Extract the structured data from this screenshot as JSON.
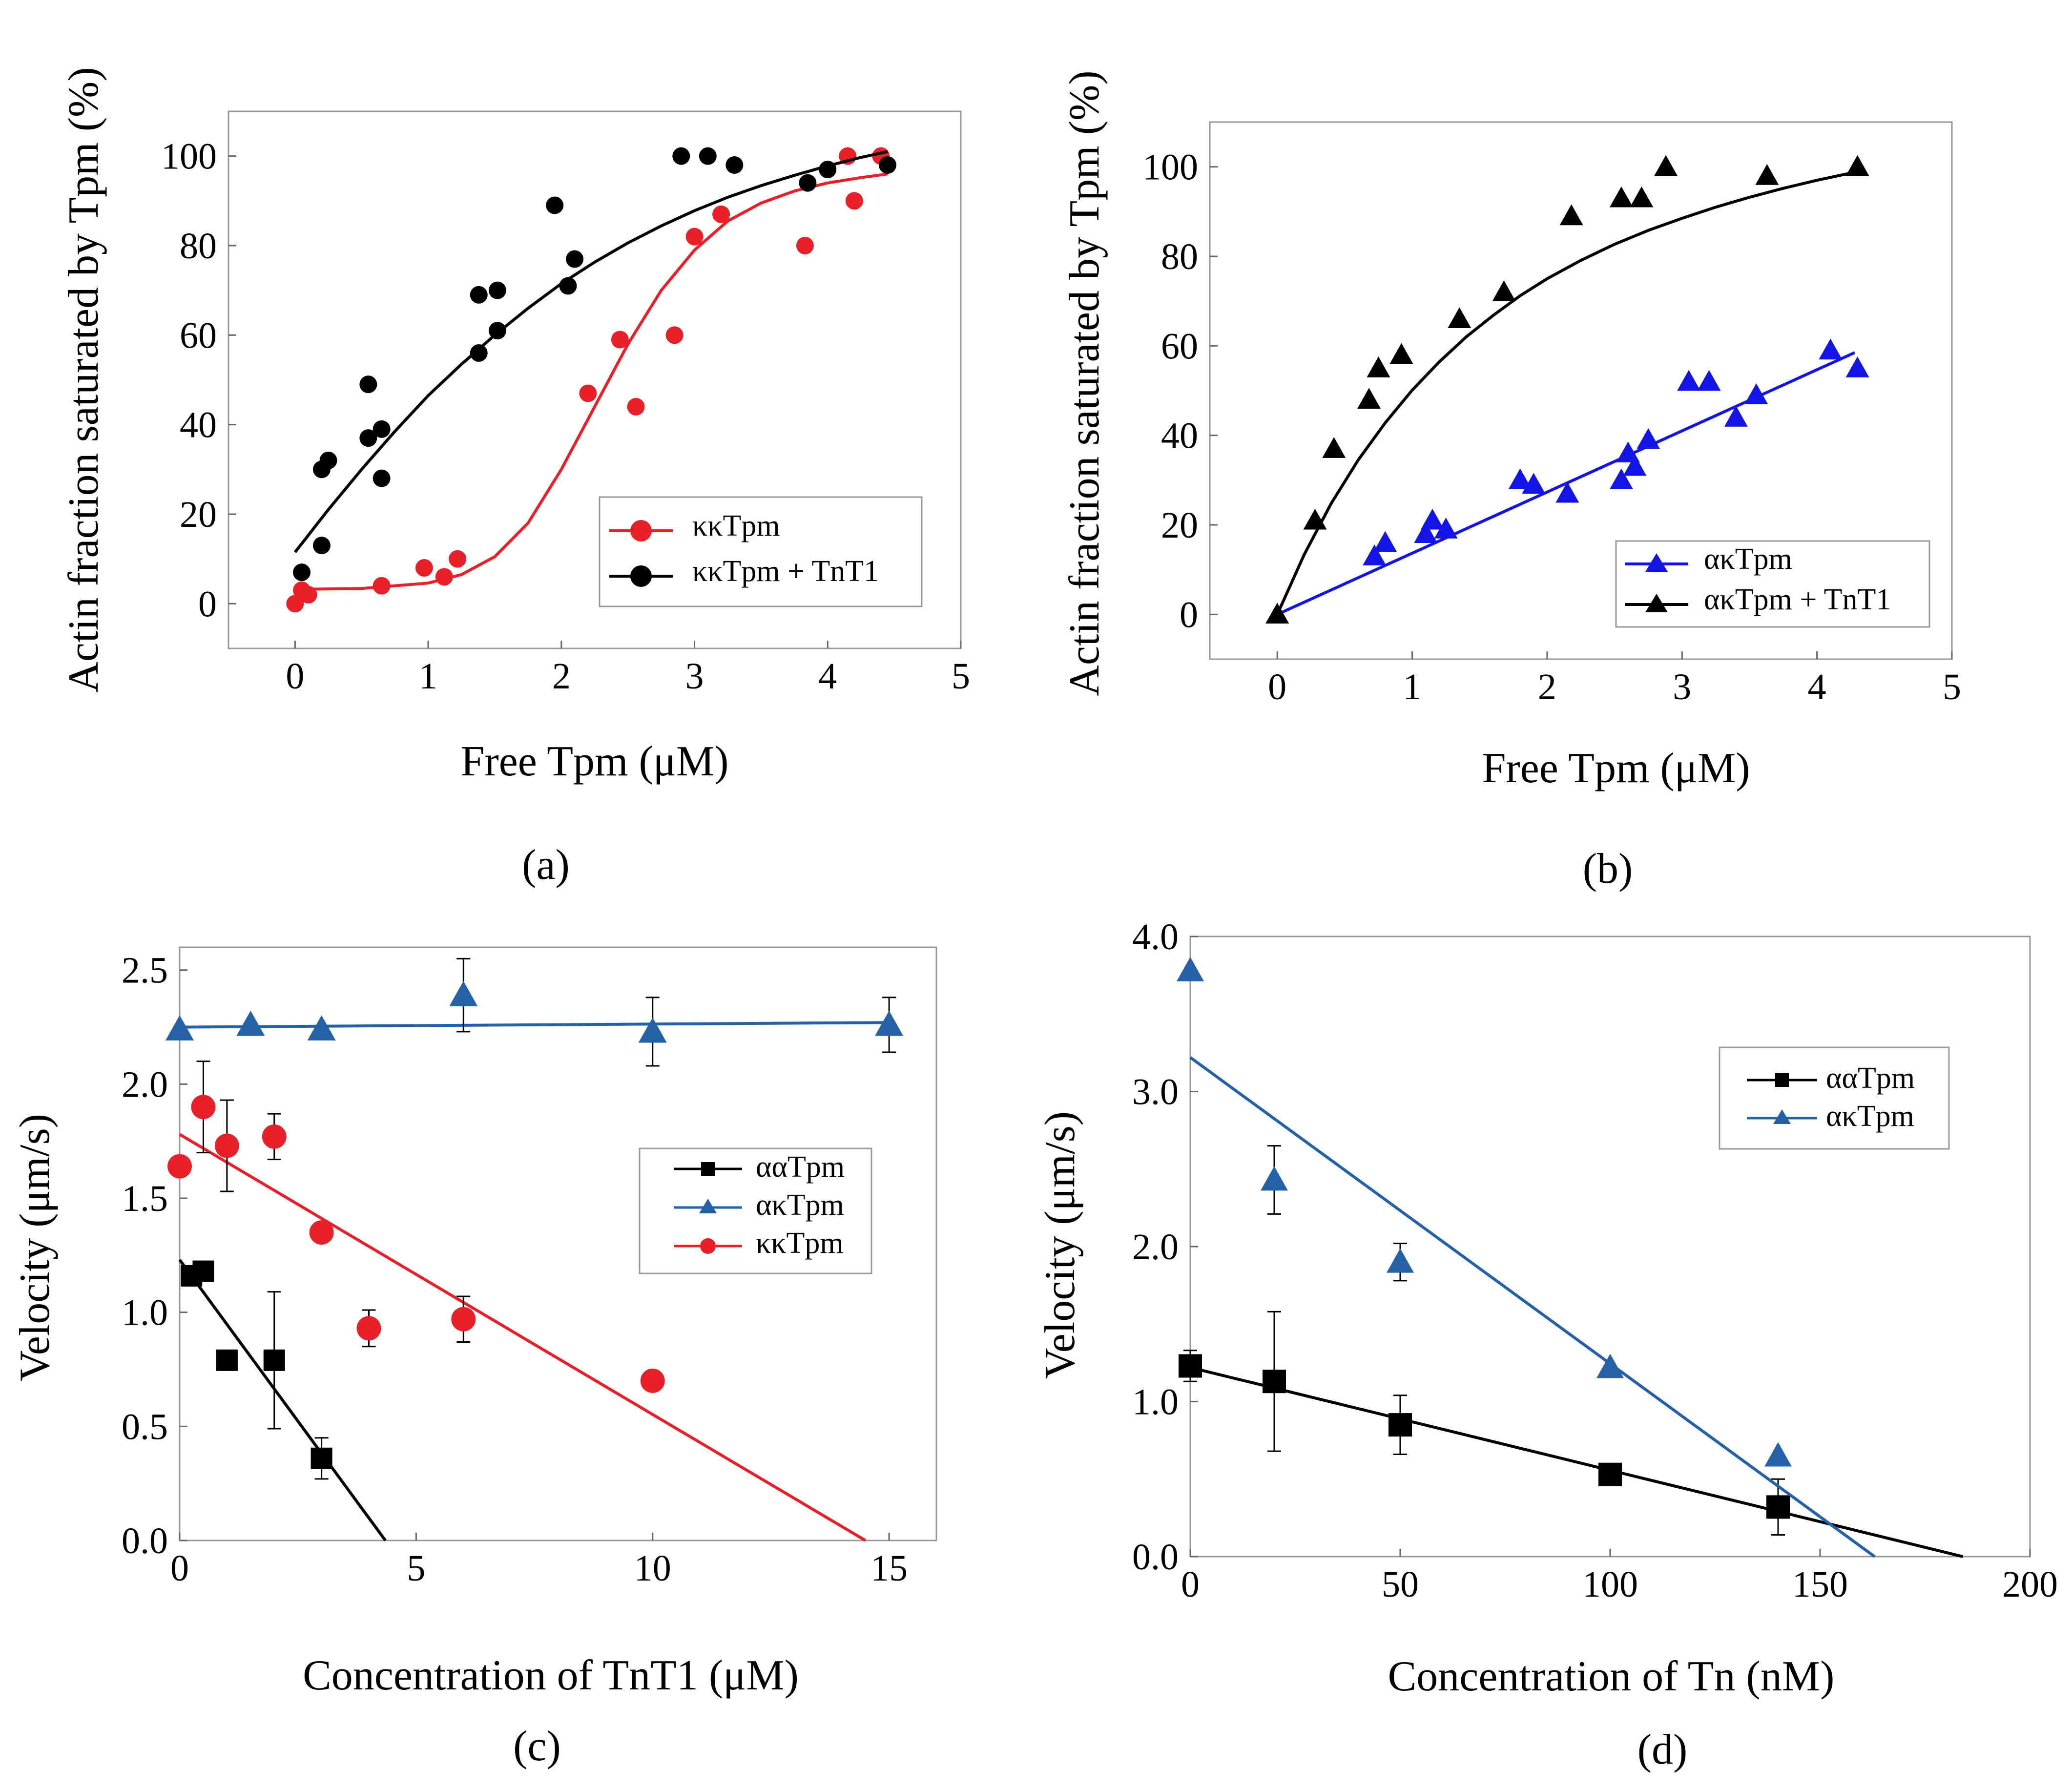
{
  "chart_data": [
    {
      "type": "scatter",
      "panel_label": "(a)",
      "xlabel": "Free Tpm (μM)",
      "ylabel": "Actin fraction saturated by Tpm (%)",
      "xlim": [
        -0.5,
        5
      ],
      "ylim": [
        -10,
        110
      ],
      "xticks": [
        "0",
        "1",
        "2",
        "3",
        "4",
        "5"
      ],
      "yticks": [
        "0",
        "20",
        "40",
        "60",
        "80",
        "100"
      ],
      "legend_position": "lower-right",
      "series": [
        {
          "name": "κκTpm",
          "color": "#e8202a",
          "marker": "circle",
          "points": [
            [
              0.0,
              0
            ],
            [
              0.05,
              3
            ],
            [
              0.1,
              2
            ],
            [
              0.65,
              4
            ],
            [
              0.97,
              8
            ],
            [
              1.12,
              6
            ],
            [
              1.22,
              10
            ],
            [
              2.2,
              47
            ],
            [
              2.44,
              59
            ],
            [
              2.56,
              44
            ],
            [
              2.85,
              60
            ],
            [
              3.0,
              82
            ],
            [
              3.2,
              87
            ],
            [
              3.83,
              80
            ],
            [
              4.15,
              100
            ],
            [
              4.2,
              90
            ],
            [
              4.4,
              100
            ]
          ],
          "fit": [
            [
              0.0,
              3.2
            ],
            [
              0.5,
              3.4
            ],
            [
              1.0,
              4.6
            ],
            [
              1.25,
              6.5
            ],
            [
              1.5,
              10.5
            ],
            [
              1.75,
              18
            ],
            [
              2.0,
              30
            ],
            [
              2.25,
              44
            ],
            [
              2.5,
              58
            ],
            [
              2.75,
              70
            ],
            [
              3.0,
              79
            ],
            [
              3.25,
              85.5
            ],
            [
              3.5,
              89.5
            ],
            [
              3.75,
              92.2
            ],
            [
              4.0,
              94
            ],
            [
              4.25,
              95.2
            ],
            [
              4.45,
              96
            ]
          ]
        },
        {
          "name": "κκTpm + TnT1",
          "color": "#000000",
          "marker": "circle",
          "points": [
            [
              0.05,
              7
            ],
            [
              0.2,
              13
            ],
            [
              0.2,
              30
            ],
            [
              0.25,
              32
            ],
            [
              0.55,
              49
            ],
            [
              0.55,
              37
            ],
            [
              0.65,
              39
            ],
            [
              0.65,
              28
            ],
            [
              1.38,
              69
            ],
            [
              1.38,
              56
            ],
            [
              1.52,
              61
            ],
            [
              1.52,
              70
            ],
            [
              1.95,
              89
            ],
            [
              2.05,
              71
            ],
            [
              2.1,
              77
            ],
            [
              2.9,
              100
            ],
            [
              3.1,
              100
            ],
            [
              3.3,
              98
            ],
            [
              3.85,
              94
            ],
            [
              4.0,
              97
            ],
            [
              4.45,
              98
            ]
          ],
          "fit": [
            [
              0.0,
              11.5
            ],
            [
              0.25,
              21
            ],
            [
              0.5,
              30
            ],
            [
              0.75,
              38.5
            ],
            [
              1.0,
              46.5
            ],
            [
              1.25,
              53.5
            ],
            [
              1.5,
              60
            ],
            [
              1.75,
              66
            ],
            [
              2.0,
              71.5
            ],
            [
              2.25,
              76.3
            ],
            [
              2.5,
              80.6
            ],
            [
              2.75,
              84.4
            ],
            [
              3.0,
              87.8
            ],
            [
              3.25,
              90.8
            ],
            [
              3.5,
              93.4
            ],
            [
              3.75,
              95.7
            ],
            [
              4.0,
              97.8
            ],
            [
              4.25,
              99.7
            ],
            [
              4.45,
              101
            ]
          ]
        }
      ]
    },
    {
      "type": "scatter",
      "panel_label": "(b)",
      "xlabel": "Free Tpm (μM)",
      "ylabel": "Actin fraction saturated by Tpm (%)",
      "xlim": [
        -0.5,
        5
      ],
      "ylim": [
        -10,
        110
      ],
      "xticks": [
        "0",
        "1",
        "2",
        "3",
        "4",
        "5"
      ],
      "yticks": [
        "0",
        "20",
        "40",
        "60",
        "80",
        "100"
      ],
      "legend_position": "lower-right",
      "series": [
        {
          "name": "ακTpm",
          "color": "#1414e6",
          "marker": "triangle",
          "points": [
            [
              0.0,
              0
            ],
            [
              0.72,
              13
            ],
            [
              0.8,
              16
            ],
            [
              1.1,
              18
            ],
            [
              1.15,
              21
            ],
            [
              1.25,
              19
            ],
            [
              1.8,
              30
            ],
            [
              1.9,
              29
            ],
            [
              2.15,
              27
            ],
            [
              2.55,
              30
            ],
            [
              2.6,
              36
            ],
            [
              2.65,
              33
            ],
            [
              2.75,
              39
            ],
            [
              3.05,
              52
            ],
            [
              3.2,
              52
            ],
            [
              3.4,
              44
            ],
            [
              3.55,
              49
            ],
            [
              4.1,
              59
            ],
            [
              4.3,
              55
            ]
          ],
          "fit": [
            [
              0.0,
              0
            ],
            [
              4.28,
              58.5
            ]
          ]
        },
        {
          "name": "ακTpm + TnT1",
          "color": "#000000",
          "marker": "triangle",
          "points": [
            [
              0.0,
              0
            ],
            [
              0.28,
              21
            ],
            [
              0.42,
              37
            ],
            [
              0.68,
              48
            ],
            [
              0.75,
              55
            ],
            [
              0.92,
              58
            ],
            [
              1.35,
              66
            ],
            [
              1.68,
              72
            ],
            [
              2.18,
              89
            ],
            [
              2.55,
              93
            ],
            [
              2.7,
              93
            ],
            [
              2.88,
              100
            ],
            [
              3.63,
              98
            ],
            [
              4.3,
              100
            ]
          ],
          "fit": [
            [
              0.0,
              0
            ],
            [
              0.2,
              13.4
            ],
            [
              0.4,
              24.8
            ],
            [
              0.6,
              34.5
            ],
            [
              0.8,
              42.8
            ],
            [
              1.0,
              50.1
            ],
            [
              1.2,
              56.4
            ],
            [
              1.4,
              62
            ],
            [
              1.6,
              66.8
            ],
            [
              1.8,
              71.2
            ],
            [
              2.0,
              75
            ],
            [
              2.25,
              79.1
            ],
            [
              2.5,
              82.7
            ],
            [
              2.75,
              85.8
            ],
            [
              3.0,
              88.5
            ],
            [
              3.25,
              91
            ],
            [
              3.5,
              93.2
            ],
            [
              3.75,
              95.2
            ],
            [
              4.0,
              97
            ],
            [
              4.28,
              98.8
            ]
          ]
        }
      ]
    },
    {
      "type": "scatter",
      "panel_label": "(c)",
      "xlabel": "Concentration of TnT1  (μM)",
      "ylabel": "Velocity  (μm/s)",
      "xlim": [
        0,
        16
      ],
      "ylim": [
        0,
        2.6
      ],
      "xticks": [
        "0",
        "5",
        "10",
        "15"
      ],
      "yticks": [
        "0.0",
        "0.5",
        "1.0",
        "1.5",
        "2.0",
        "2.5"
      ],
      "legend_position": "center-right",
      "series": [
        {
          "name": "ααTpm",
          "color": "#000000",
          "marker": "square",
          "points": [
            [
              0.25,
              1.16,
              0
            ],
            [
              0.5,
              1.18,
              0
            ],
            [
              1.0,
              0.79,
              0
            ],
            [
              2.0,
              0.79,
              0.3
            ],
            [
              3.0,
              0.36,
              0.09
            ]
          ],
          "fit": [
            [
              0.0,
              1.23
            ],
            [
              4.35,
              0.0
            ]
          ]
        },
        {
          "name": "ακTpm",
          "color": "#2461a6",
          "marker": "triangle",
          "points": [
            [
              0.0,
              2.24,
              0
            ],
            [
              1.5,
              2.26,
              0
            ],
            [
              3.0,
              2.24,
              0
            ],
            [
              6.0,
              2.39,
              0.16
            ],
            [
              10.0,
              2.23,
              0.15
            ],
            [
              15.0,
              2.26,
              0.12
            ]
          ],
          "fit": [
            [
              0.0,
              2.25
            ],
            [
              15.0,
              2.27
            ]
          ]
        },
        {
          "name": "κκTpm",
          "color": "#e8202a",
          "marker": "circle",
          "points": [
            [
              0.0,
              1.64,
              0
            ],
            [
              0.5,
              1.9,
              0.2
            ],
            [
              1.0,
              1.73,
              0.2
            ],
            [
              2.0,
              1.77,
              0.1
            ],
            [
              3.0,
              1.35,
              0
            ],
            [
              4.0,
              0.93,
              0.08
            ],
            [
              6.0,
              0.97,
              0.1
            ],
            [
              10.0,
              0.7,
              0
            ]
          ],
          "fit": [
            [
              0.0,
              1.78
            ],
            [
              14.5,
              0.0
            ]
          ]
        }
      ]
    },
    {
      "type": "scatter",
      "panel_label": "(d)",
      "xlabel": "Concentration of Tn (nM)",
      "ylabel": "Velocity (μm/s)",
      "xlim": [
        0,
        200
      ],
      "ylim": [
        0,
        4.0
      ],
      "xticks": [
        "0",
        "50",
        "100",
        "150",
        "200"
      ],
      "yticks": [
        "0.0",
        "1.0",
        "2.0",
        "3.0",
        "4.0"
      ],
      "legend_position": "top-right",
      "series": [
        {
          "name": "ααTpm",
          "color": "#000000",
          "marker": "square",
          "points": [
            [
              0,
              1.23,
              0.1
            ],
            [
              20,
              1.13,
              0.45
            ],
            [
              50,
              0.85,
              0.19
            ],
            [
              100,
              0.53,
              0
            ],
            [
              140,
              0.32,
              0.18
            ]
          ],
          "fit": [
            [
              0,
              1.22
            ],
            [
              184,
              0.0
            ]
          ]
        },
        {
          "name": "ακTpm",
          "color": "#2461a6",
          "marker": "triangle",
          "points": [
            [
              0,
              3.78,
              0
            ],
            [
              20,
              2.43,
              0.22
            ],
            [
              50,
              1.9,
              0.12
            ],
            [
              100,
              1.22,
              0
            ],
            [
              140,
              0.65,
              0
            ]
          ],
          "fit": [
            [
              0,
              3.22
            ],
            [
              163,
              0.0
            ]
          ]
        }
      ]
    }
  ]
}
